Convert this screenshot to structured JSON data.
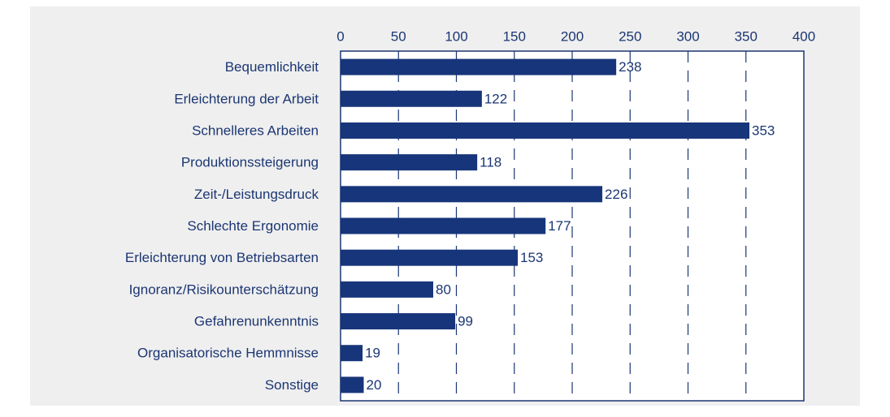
{
  "chart_data": {
    "type": "bar",
    "orientation": "horizontal",
    "categories": [
      "Bequemlichkeit",
      "Erleichterung der Arbeit",
      "Schnelleres Arbeiten",
      "Produktionssteigerung",
      "Zeit-/Leistungsdruck",
      "Schlechte Ergonomie",
      "Erleichterung von Betriebsarten",
      "Ignoranz/Risikounterschätzung",
      "Gefahrenunkenntnis",
      "Organisatorische Hemmnisse",
      "Sonstige"
    ],
    "values": [
      238,
      122,
      353,
      118,
      226,
      177,
      153,
      80,
      99,
      19,
      20
    ],
    "color": "#17357a",
    "xlim": [
      0,
      400
    ],
    "xticks": [
      0,
      50,
      100,
      150,
      200,
      250,
      300,
      350,
      400
    ],
    "grid": true
  }
}
